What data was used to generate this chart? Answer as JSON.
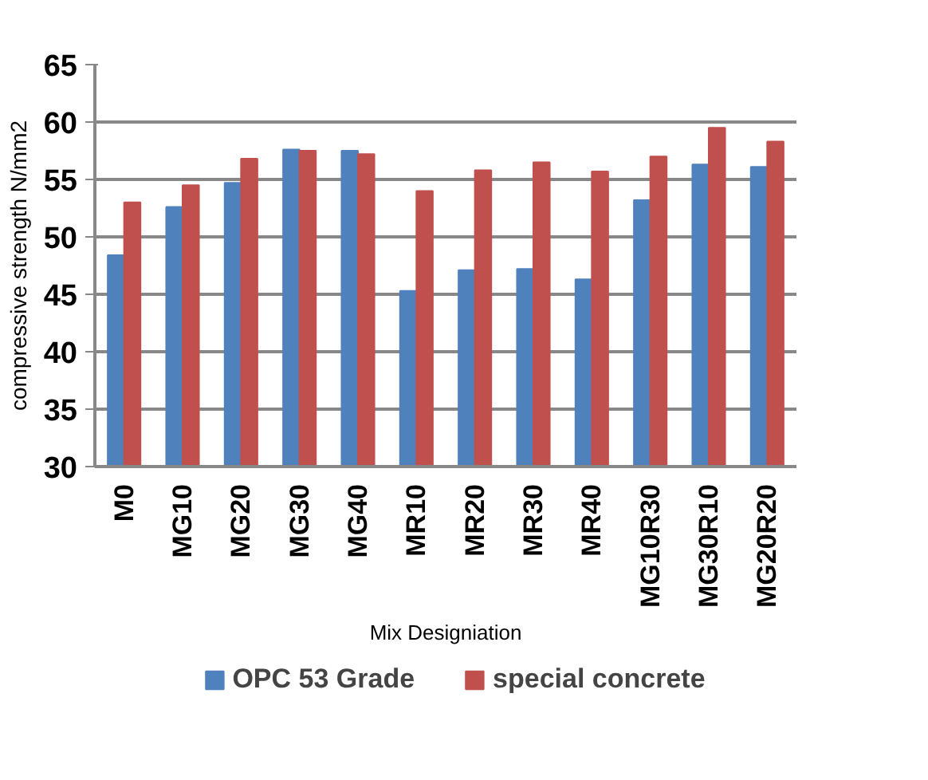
{
  "chart_data": {
    "type": "bar",
    "categories": [
      "M0",
      "MG10",
      "MG20",
      "MG30",
      "MG40",
      "MR10",
      "MR20",
      "MR30",
      "MR40",
      "MG10R30",
      "MG30R10",
      "MG20R20"
    ],
    "series": [
      {
        "name": "OPC 53 Grade",
        "color": "#4f81bd",
        "values": [
          48.4,
          52.6,
          54.7,
          57.6,
          57.5,
          45.3,
          47.1,
          47.2,
          46.3,
          53.2,
          56.3,
          56.1
        ]
      },
      {
        "name": "special concrete",
        "color": "#c0504d",
        "values": [
          53.0,
          54.5,
          56.8,
          57.5,
          57.2,
          54.0,
          55.8,
          56.5,
          55.7,
          57.0,
          59.5,
          58.3
        ]
      }
    ],
    "xlabel": "Mix Designiation",
    "ylabel": "compressive strength N/mm2",
    "ylim": [
      30,
      65
    ],
    "yticks": [
      30,
      35,
      40,
      45,
      50,
      55,
      60,
      65
    ],
    "grid": "y",
    "legend": "bottom"
  }
}
